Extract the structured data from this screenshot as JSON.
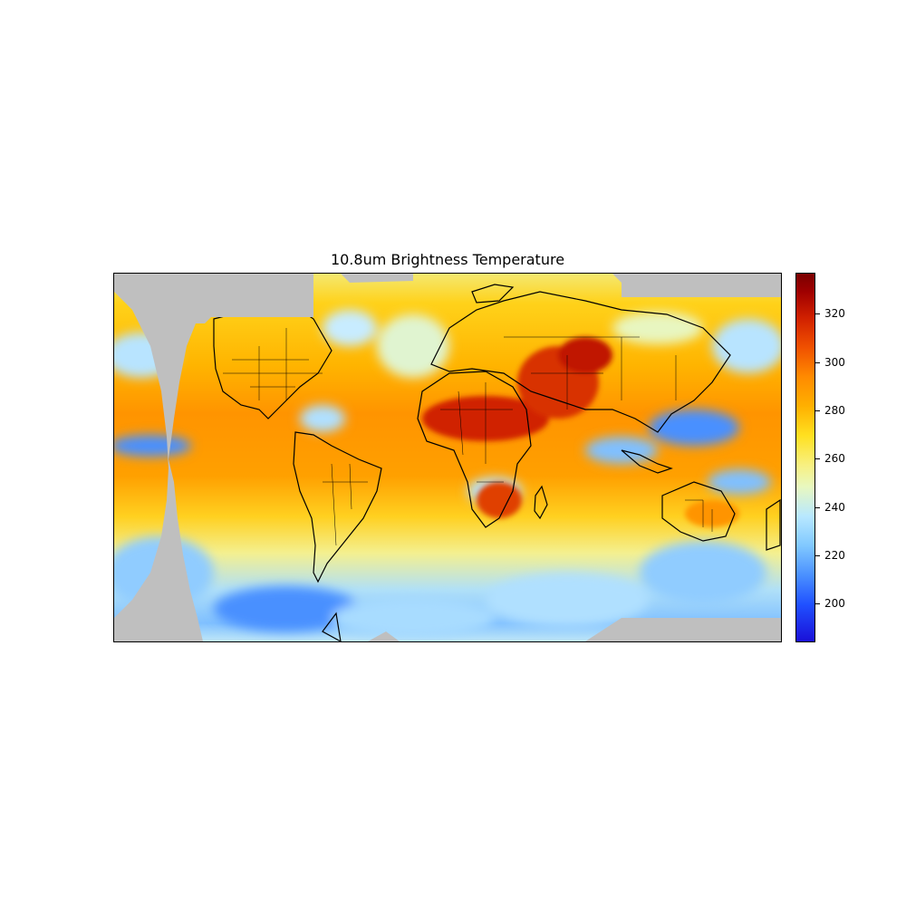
{
  "title": "10.8um Brightness Temperature",
  "colorbar": {
    "range": [
      184,
      337
    ],
    "ticks": [
      {
        "value": 200,
        "label": "200"
      },
      {
        "value": 220,
        "label": "220"
      },
      {
        "value": 240,
        "label": "240"
      },
      {
        "value": 260,
        "label": "260"
      },
      {
        "value": 280,
        "label": "280"
      },
      {
        "value": 300,
        "label": "300"
      },
      {
        "value": 320,
        "label": "320"
      }
    ],
    "colors": {
      "low": "#1a10d8",
      "mid_low": "#80c8ff",
      "mid": "#f8f080",
      "mid_high": "#ff8a00",
      "high": "#7a0000",
      "no_data": "#bfbfbf"
    }
  }
}
